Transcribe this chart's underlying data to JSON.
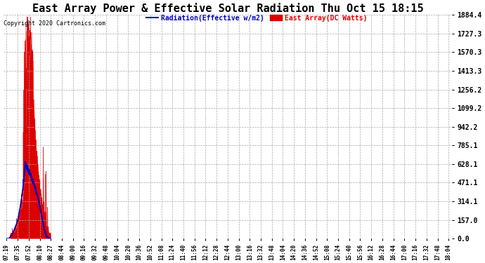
{
  "title": "East Array Power & Effective Solar Radiation Thu Oct 15 18:15",
  "copyright": "Copyright 2020 Cartronics.com",
  "legend_blue": "Radiation(Effective w/m2)",
  "legend_red": "East Array(DC Watts)",
  "ylabel_values": [
    0.0,
    157.0,
    314.1,
    471.1,
    628.1,
    785.1,
    942.2,
    1099.2,
    1256.2,
    1413.3,
    1570.3,
    1727.3,
    1884.4
  ],
  "ylim_max": 1884.4,
  "background_color": "#ffffff",
  "grid_color": "#aaaaaa",
  "title_fontsize": 11,
  "red_color": "#dd0000",
  "blue_color": "#0000bb",
  "xtick_labels": [
    "07:19",
    "07:35",
    "07:52",
    "08:10",
    "08:27",
    "08:44",
    "09:00",
    "09:16",
    "09:32",
    "09:48",
    "10:04",
    "10:20",
    "10:36",
    "10:52",
    "11:08",
    "11:24",
    "11:40",
    "11:56",
    "12:12",
    "12:28",
    "12:44",
    "13:00",
    "13:16",
    "13:32",
    "13:48",
    "14:04",
    "14:20",
    "14:36",
    "14:52",
    "15:08",
    "15:24",
    "15:40",
    "15:56",
    "16:12",
    "16:28",
    "16:44",
    "17:00",
    "17:16",
    "17:32",
    "17:48",
    "18:04"
  ]
}
